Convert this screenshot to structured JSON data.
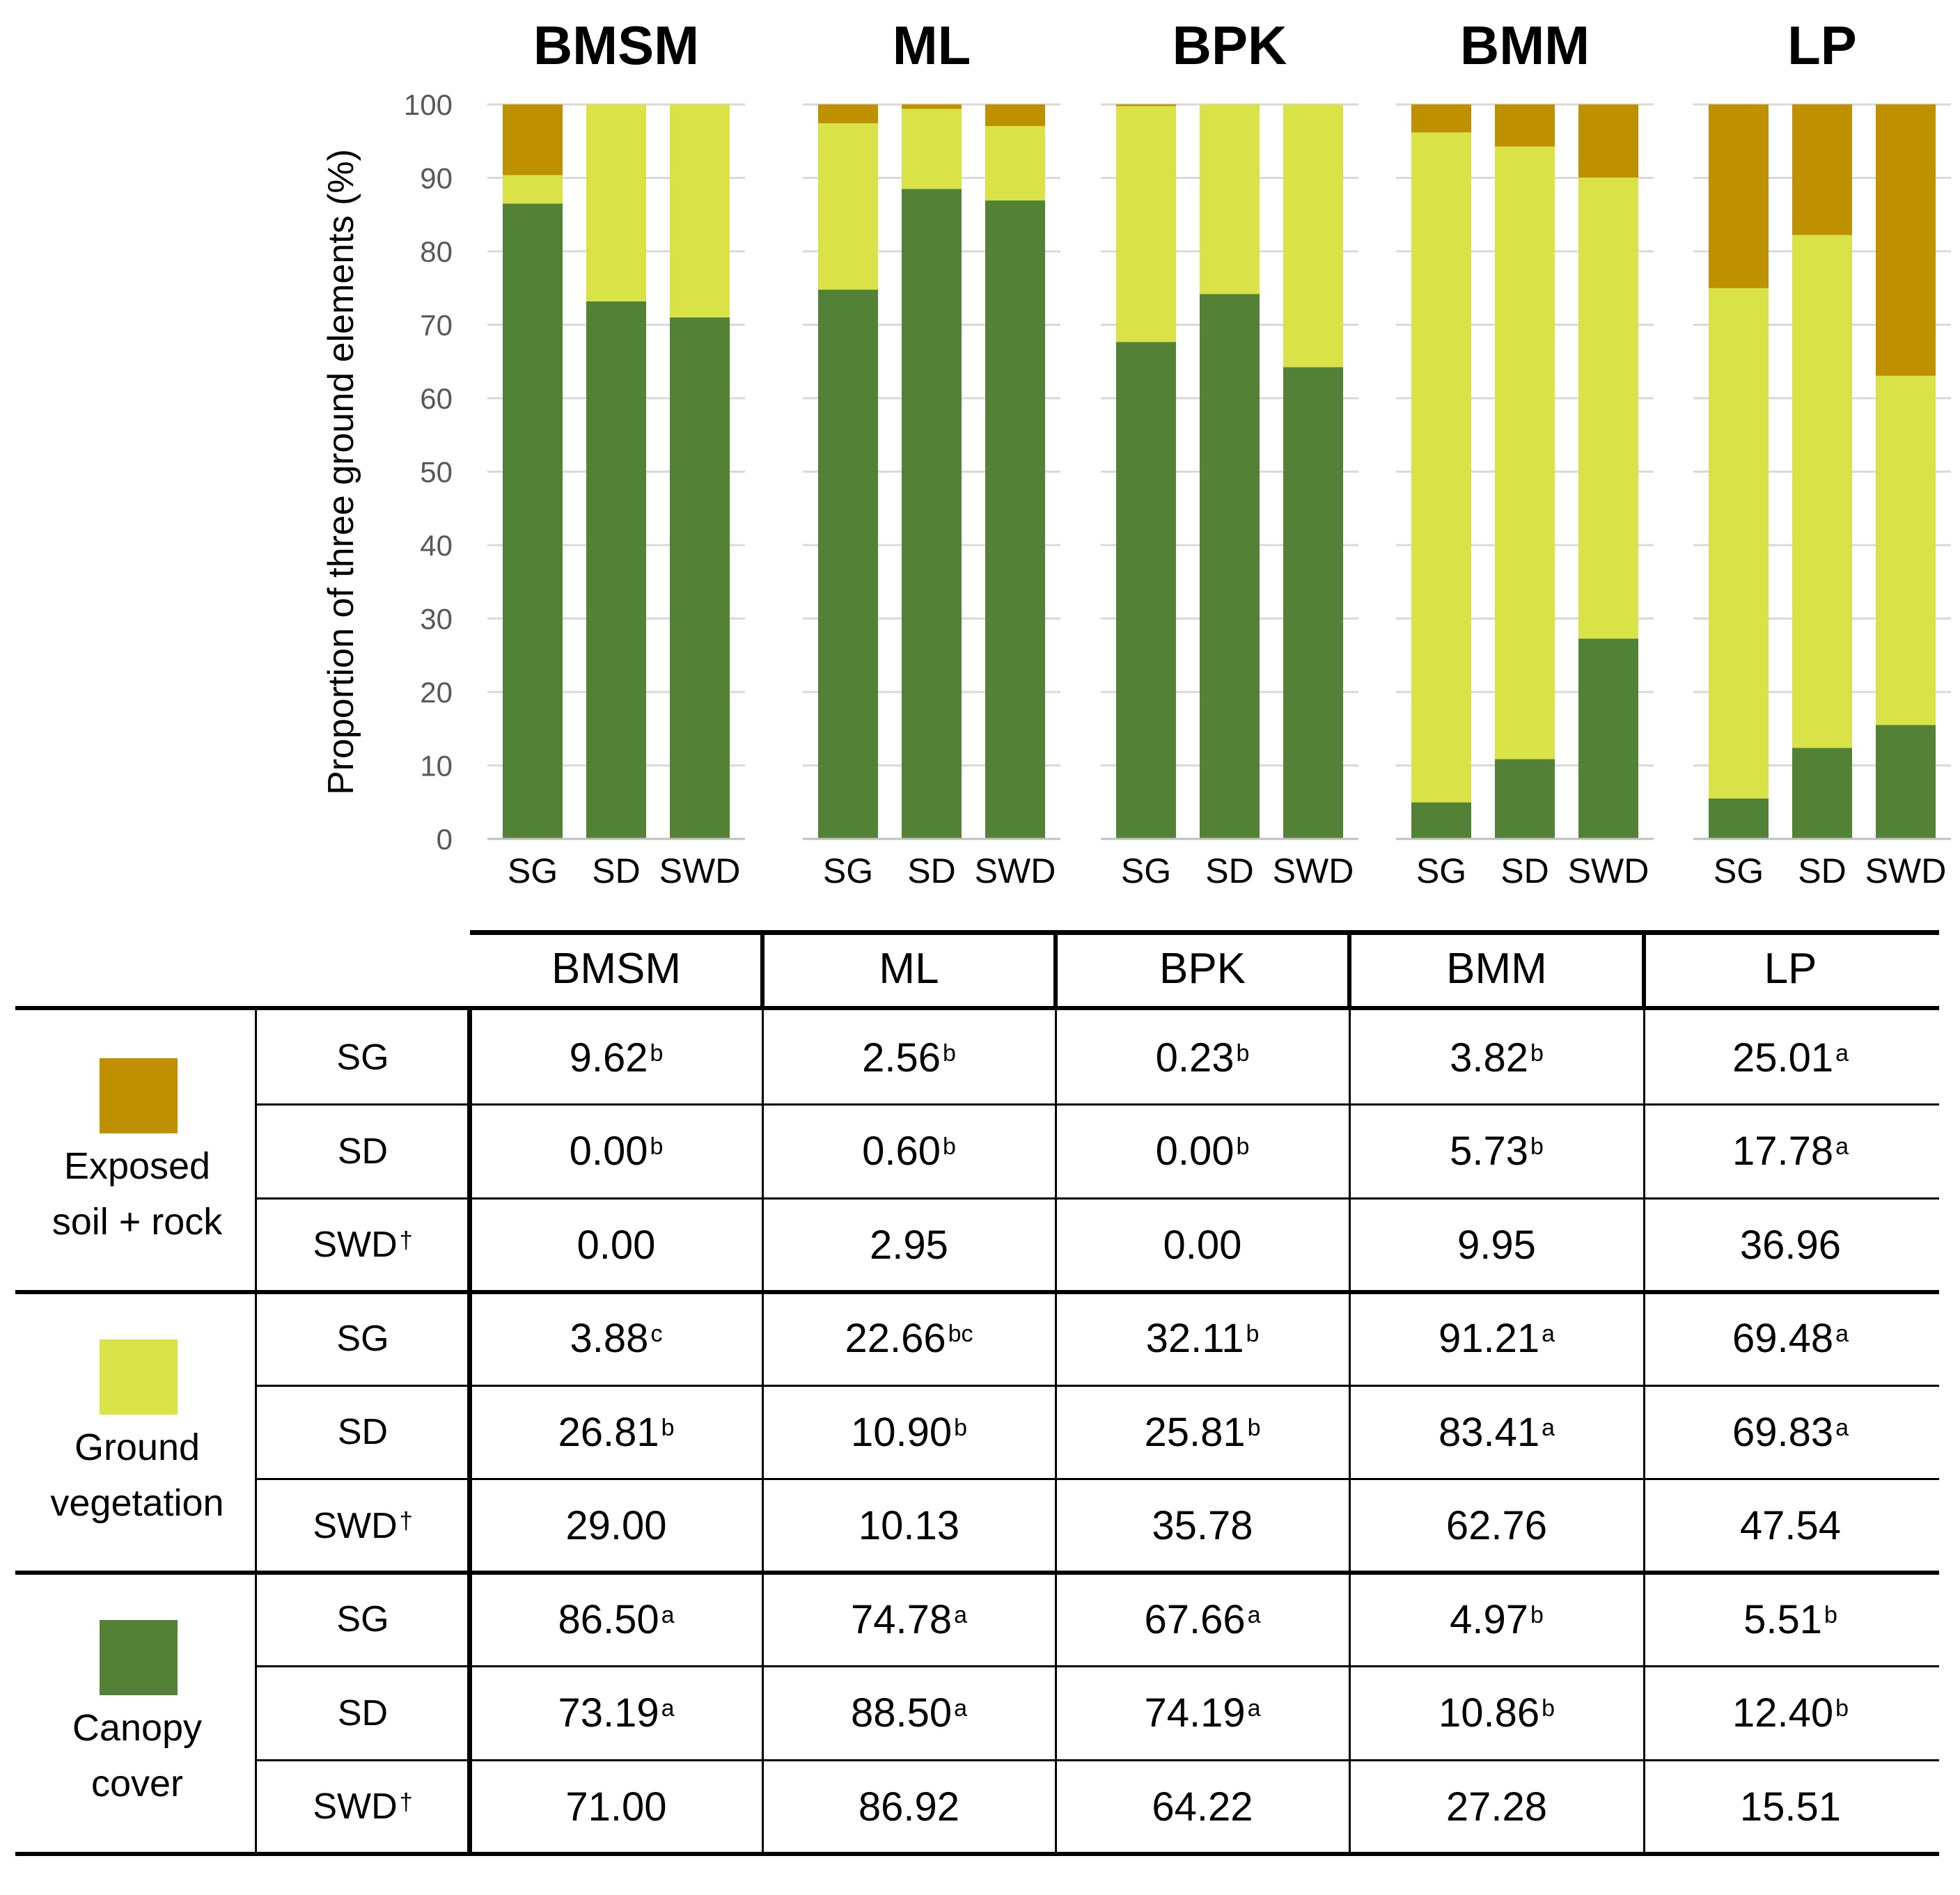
{
  "chart_data": {
    "type": "bar",
    "stacked": true,
    "ylabel": "Proportion of three ground elements (%)",
    "ylim": [
      0,
      100
    ],
    "yticks": [
      "0",
      "10",
      "20",
      "30",
      "40",
      "50",
      "60",
      "70",
      "80",
      "90",
      "100"
    ],
    "grid": true,
    "groups": [
      {
        "title": "BMSM",
        "categories": [
          "SG",
          "SD",
          "SWD"
        ]
      },
      {
        "title": "ML",
        "categories": [
          "SG",
          "SD",
          "SWD"
        ]
      },
      {
        "title": "BPK",
        "categories": [
          "SG",
          "SD",
          "SWD"
        ]
      },
      {
        "title": "BMM",
        "categories": [
          "SG",
          "SD",
          "SWD"
        ]
      },
      {
        "title": "LP",
        "categories": [
          "SG",
          "SD",
          "SWD"
        ]
      }
    ],
    "series": [
      {
        "name": "Canopy cover",
        "color": "#538135",
        "values": [
          [
            86.5,
            73.19,
            71.0
          ],
          [
            74.78,
            88.5,
            86.92
          ],
          [
            67.66,
            74.19,
            64.22
          ],
          [
            4.97,
            10.86,
            27.28
          ],
          [
            5.51,
            12.4,
            15.51
          ]
        ]
      },
      {
        "name": "Ground vegetation",
        "color": "#d9e348",
        "values": [
          [
            3.88,
            26.81,
            29.0
          ],
          [
            22.66,
            10.9,
            10.13
          ],
          [
            32.11,
            25.81,
            35.78
          ],
          [
            91.21,
            83.41,
            62.76
          ],
          [
            69.48,
            69.83,
            47.54
          ]
        ]
      },
      {
        "name": "Exposed soil + rock",
        "color": "#bf9000",
        "values": [
          [
            9.62,
            0.0,
            0.0
          ],
          [
            2.56,
            0.6,
            2.95
          ],
          [
            0.23,
            0.0,
            0.0
          ],
          [
            3.82,
            5.73,
            9.95
          ],
          [
            25.01,
            17.78,
            36.96
          ]
        ]
      }
    ]
  },
  "table": {
    "columns": [
      "BMSM",
      "ML",
      "BPK",
      "BMM",
      "LP"
    ],
    "groups": [
      {
        "label_lines": [
          "Exposed",
          "soil + rock"
        ],
        "color": "#bf9000",
        "rows": [
          {
            "label": "SG",
            "cells": [
              {
                "v": "9.62",
                "s": "b"
              },
              {
                "v": "2.56",
                "s": "b"
              },
              {
                "v": "0.23",
                "s": "b"
              },
              {
                "v": "3.82",
                "s": "b"
              },
              {
                "v": "25.01",
                "s": "a"
              }
            ]
          },
          {
            "label": "SD",
            "cells": [
              {
                "v": "0.00",
                "s": "b"
              },
              {
                "v": "0.60",
                "s": "b"
              },
              {
                "v": "0.00",
                "s": "b"
              },
              {
                "v": "5.73",
                "s": "b"
              },
              {
                "v": "17.78",
                "s": "a"
              }
            ]
          },
          {
            "label": "SWD",
            "mark": "†",
            "cells": [
              {
                "v": "0.00",
                "s": ""
              },
              {
                "v": "2.95",
                "s": ""
              },
              {
                "v": "0.00",
                "s": ""
              },
              {
                "v": "9.95",
                "s": ""
              },
              {
                "v": "36.96",
                "s": ""
              }
            ]
          }
        ]
      },
      {
        "label_lines": [
          "Ground",
          "vegetation"
        ],
        "color": "#d9e348",
        "rows": [
          {
            "label": "SG",
            "cells": [
              {
                "v": "3.88",
                "s": "c"
              },
              {
                "v": "22.66",
                "s": "bc"
              },
              {
                "v": "32.11",
                "s": "b"
              },
              {
                "v": "91.21",
                "s": "a"
              },
              {
                "v": "69.48",
                "s": "a"
              }
            ]
          },
          {
            "label": "SD",
            "cells": [
              {
                "v": "26.81",
                "s": "b"
              },
              {
                "v": "10.90",
                "s": "b"
              },
              {
                "v": "25.81",
                "s": "b"
              },
              {
                "v": "83.41",
                "s": "a"
              },
              {
                "v": "69.83",
                "s": "a"
              }
            ]
          },
          {
            "label": "SWD",
            "mark": "†",
            "cells": [
              {
                "v": "29.00",
                "s": ""
              },
              {
                "v": "10.13",
                "s": ""
              },
              {
                "v": "35.78",
                "s": ""
              },
              {
                "v": "62.76",
                "s": ""
              },
              {
                "v": "47.54",
                "s": ""
              }
            ]
          }
        ]
      },
      {
        "label_lines": [
          "Canopy",
          "cover"
        ],
        "color": "#538135",
        "rows": [
          {
            "label": "SG",
            "cells": [
              {
                "v": "86.50",
                "s": "a"
              },
              {
                "v": "74.78",
                "s": "a"
              },
              {
                "v": "67.66",
                "s": "a"
              },
              {
                "v": "4.97",
                "s": "b"
              },
              {
                "v": "5.51",
                "s": "b"
              }
            ]
          },
          {
            "label": "SD",
            "cells": [
              {
                "v": "73.19",
                "s": "a"
              },
              {
                "v": "88.50",
                "s": "a"
              },
              {
                "v": "74.19",
                "s": "a"
              },
              {
                "v": "10.86",
                "s": "b"
              },
              {
                "v": "12.40",
                "s": "b"
              }
            ]
          },
          {
            "label": "SWD",
            "mark": "†",
            "cells": [
              {
                "v": "71.00",
                "s": ""
              },
              {
                "v": "86.92",
                "s": ""
              },
              {
                "v": "64.22",
                "s": ""
              },
              {
                "v": "27.28",
                "s": ""
              },
              {
                "v": "15.51",
                "s": ""
              }
            ]
          }
        ]
      }
    ]
  }
}
